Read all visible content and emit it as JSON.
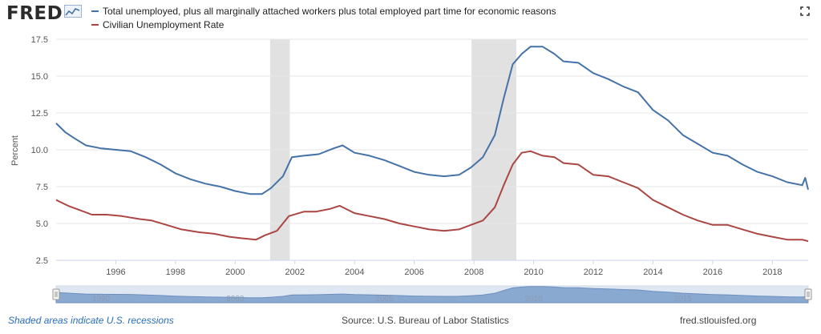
{
  "brand": {
    "name": "FRED"
  },
  "chart_data": {
    "type": "line",
    "ylabel": "Percent",
    "ylim": [
      2.5,
      17.5
    ],
    "y_ticks": [
      "2.5",
      "5.0",
      "7.5",
      "10.0",
      "12.5",
      "15.0",
      "17.5"
    ],
    "xlim": [
      1994.0,
      2019.2
    ],
    "x_ticks": [
      "1996",
      "1998",
      "2000",
      "2002",
      "2004",
      "2006",
      "2008",
      "2010",
      "2012",
      "2014",
      "2016",
      "2018"
    ],
    "recessions": [
      [
        2001.17,
        2001.83
      ],
      [
        2007.92,
        2009.42
      ]
    ],
    "series": [
      {
        "name": "Total unemployed, plus all marginally attached workers plus total employed part time for economic reasons",
        "color": "#4572a7",
        "x": [
          1994.0,
          1994.3,
          1994.6,
          1995.0,
          1995.5,
          1996.0,
          1996.5,
          1997.0,
          1997.5,
          1998.0,
          1998.5,
          1999.0,
          1999.5,
          2000.0,
          2000.5,
          2000.9,
          2001.2,
          2001.6,
          2001.9,
          2002.3,
          2002.8,
          2003.3,
          2003.6,
          2004.0,
          2004.5,
          2005.0,
          2005.5,
          2006.0,
          2006.5,
          2007.0,
          2007.5,
          2007.9,
          2008.3,
          2008.7,
          2009.0,
          2009.3,
          2009.6,
          2009.9,
          2010.3,
          2010.7,
          2011.0,
          2011.5,
          2012.0,
          2012.5,
          2013.0,
          2013.5,
          2014.0,
          2014.5,
          2015.0,
          2015.5,
          2016.0,
          2016.5,
          2017.0,
          2017.5,
          2018.0,
          2018.5,
          2019.0,
          2019.1,
          2019.2
        ],
        "values": [
          11.8,
          11.2,
          10.8,
          10.3,
          10.1,
          10.0,
          9.9,
          9.5,
          9.0,
          8.4,
          8.0,
          7.7,
          7.5,
          7.2,
          7.0,
          7.0,
          7.4,
          8.2,
          9.5,
          9.6,
          9.7,
          10.1,
          10.3,
          9.8,
          9.6,
          9.3,
          8.9,
          8.5,
          8.3,
          8.2,
          8.3,
          8.8,
          9.5,
          11.0,
          13.5,
          15.8,
          16.5,
          17.0,
          17.0,
          16.5,
          16.0,
          15.9,
          15.2,
          14.8,
          14.3,
          13.9,
          12.7,
          12.0,
          11.0,
          10.4,
          9.8,
          9.6,
          9.0,
          8.5,
          8.2,
          7.8,
          7.6,
          8.1,
          7.3
        ]
      },
      {
        "name": "Civilian Unemployment Rate",
        "color": "#aa4643",
        "x": [
          1994.0,
          1994.4,
          1994.8,
          1995.2,
          1995.7,
          1996.2,
          1996.8,
          1997.2,
          1997.7,
          1998.2,
          1998.8,
          1999.3,
          1999.8,
          2000.2,
          2000.7,
          2001.0,
          2001.4,
          2001.8,
          2002.3,
          2002.7,
          2003.2,
          2003.5,
          2004.0,
          2004.5,
          2005.0,
          2005.5,
          2006.0,
          2006.5,
          2007.0,
          2007.5,
          2007.9,
          2008.3,
          2008.7,
          2009.0,
          2009.3,
          2009.6,
          2009.9,
          2010.3,
          2010.7,
          2011.0,
          2011.5,
          2012.0,
          2012.5,
          2013.0,
          2013.5,
          2014.0,
          2014.5,
          2015.0,
          2015.5,
          2016.0,
          2016.5,
          2017.0,
          2017.5,
          2018.0,
          2018.5,
          2019.0,
          2019.2
        ],
        "values": [
          6.6,
          6.2,
          5.9,
          5.6,
          5.6,
          5.5,
          5.3,
          5.2,
          4.9,
          4.6,
          4.4,
          4.3,
          4.1,
          4.0,
          3.9,
          4.2,
          4.5,
          5.5,
          5.8,
          5.8,
          6.0,
          6.2,
          5.7,
          5.5,
          5.3,
          5.0,
          4.8,
          4.6,
          4.5,
          4.6,
          4.9,
          5.2,
          6.1,
          7.6,
          9.0,
          9.8,
          9.9,
          9.6,
          9.5,
          9.1,
          9.0,
          8.3,
          8.2,
          7.8,
          7.4,
          6.6,
          6.1,
          5.6,
          5.2,
          4.9,
          4.9,
          4.6,
          4.3,
          4.1,
          3.9,
          3.9,
          3.8
        ]
      }
    ],
    "navigator": {
      "labels": [
        "1990",
        "2000",
        "2005",
        "2010",
        "2015"
      ]
    }
  },
  "footer": {
    "recession_note": "Shaded areas indicate U.S. recessions",
    "source": "Source: U.S. Bureau of Labor Statistics",
    "site": "fred.stlouisfed.org"
  },
  "colors": {
    "grid": "#e6e6e6",
    "recession": "#e1e1e1",
    "navigator_fill": "#8aa9d1"
  }
}
